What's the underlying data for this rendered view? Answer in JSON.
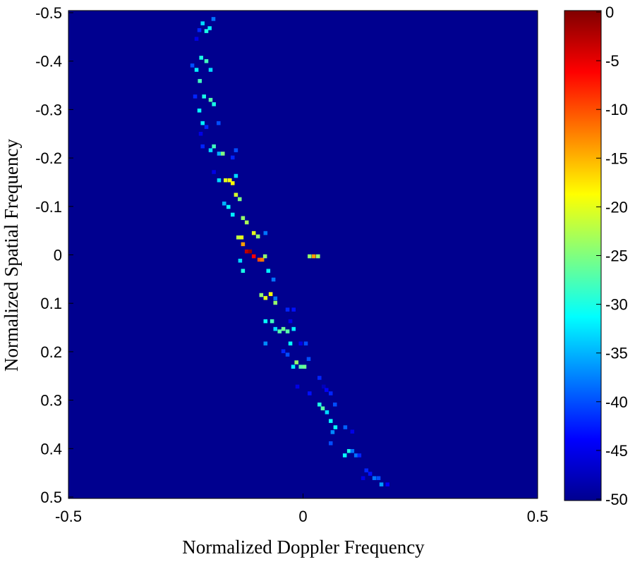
{
  "chart_data": {
    "type": "heatmap",
    "xlabel": "Normalized Doppler Frequency",
    "ylabel": "Normalized Spatial Frequency",
    "xlim": [
      -0.5,
      0.5
    ],
    "ylim": [
      -0.5,
      0.5
    ],
    "y_reversed": true,
    "xticks": [
      "-0.5",
      "0",
      "0.5"
    ],
    "yticks": [
      "-0.5",
      "-0.4",
      "-0.3",
      "-0.2",
      "-0.1",
      "0",
      "0.1",
      "0.2",
      "0.3",
      "0.4",
      "0.5"
    ],
    "colormap": "jet",
    "background_color": "#00008f",
    "colorbar": {
      "range": [
        -50,
        0
      ],
      "ticks": [
        "0",
        "-5",
        "-10",
        "-15",
        "-20",
        "-25",
        "-30",
        "-35",
        "-40",
        "-45",
        "-50"
      ]
    },
    "columns": [
      "doppler",
      "spatial",
      "dB"
    ],
    "points": [
      [
        -0.191,
        -0.487,
        -38
      ],
      [
        -0.214,
        -0.478,
        -33
      ],
      [
        -0.199,
        -0.468,
        -32
      ],
      [
        -0.206,
        -0.462,
        -30
      ],
      [
        -0.221,
        -0.464,
        -42
      ],
      [
        -0.227,
        -0.446,
        -45
      ],
      [
        -0.217,
        -0.407,
        -30
      ],
      [
        -0.206,
        -0.4,
        -28
      ],
      [
        -0.236,
        -0.391,
        -40
      ],
      [
        -0.227,
        -0.382,
        -32
      ],
      [
        -0.197,
        -0.382,
        -33
      ],
      [
        -0.22,
        -0.359,
        -28
      ],
      [
        -0.23,
        -0.327,
        -42
      ],
      [
        -0.211,
        -0.327,
        -30
      ],
      [
        -0.197,
        -0.32,
        -27
      ],
      [
        -0.19,
        -0.311,
        -30
      ],
      [
        -0.221,
        -0.298,
        -31
      ],
      [
        -0.214,
        -0.272,
        -32
      ],
      [
        -0.206,
        -0.264,
        -42
      ],
      [
        -0.18,
        -0.272,
        -40
      ],
      [
        -0.218,
        -0.25,
        -45
      ],
      [
        -0.214,
        -0.224,
        -42
      ],
      [
        -0.19,
        -0.224,
        -28
      ],
      [
        -0.197,
        -0.216,
        -33
      ],
      [
        -0.179,
        -0.209,
        -35
      ],
      [
        -0.171,
        -0.209,
        -25
      ],
      [
        -0.143,
        -0.216,
        -40
      ],
      [
        -0.15,
        -0.201,
        -42
      ],
      [
        -0.19,
        -0.171,
        -45
      ],
      [
        -0.179,
        -0.154,
        -33
      ],
      [
        -0.165,
        -0.154,
        -20
      ],
      [
        -0.156,
        -0.154,
        -19
      ],
      [
        -0.15,
        -0.148,
        -19
      ],
      [
        -0.143,
        -0.163,
        -33
      ],
      [
        -0.143,
        -0.124,
        -21
      ],
      [
        -0.135,
        -0.115,
        -25
      ],
      [
        -0.168,
        -0.106,
        -35
      ],
      [
        -0.159,
        -0.099,
        -31
      ],
      [
        -0.15,
        -0.083,
        -32
      ],
      [
        -0.128,
        -0.076,
        -24
      ],
      [
        -0.12,
        -0.067,
        -23
      ],
      [
        -0.105,
        -0.045,
        -20
      ],
      [
        -0.096,
        -0.038,
        -24
      ],
      [
        -0.08,
        -0.045,
        -38
      ],
      [
        -0.138,
        -0.036,
        -22
      ],
      [
        -0.131,
        -0.036,
        -20
      ],
      [
        -0.128,
        -0.022,
        -14
      ],
      [
        -0.12,
        -0.007,
        -3
      ],
      [
        -0.113,
        -0.007,
        -1
      ],
      [
        -0.105,
        0.003,
        -6
      ],
      [
        -0.093,
        0.01,
        -10
      ],
      [
        -0.087,
        0.01,
        -12
      ],
      [
        -0.081,
        0.003,
        -24
      ],
      [
        -0.134,
        0.012,
        -33
      ],
      [
        0.014,
        0.003,
        -24
      ],
      [
        0.023,
        0.003,
        -14
      ],
      [
        0.032,
        0.003,
        -24
      ],
      [
        -0.128,
        0.033,
        -30
      ],
      [
        -0.074,
        0.033,
        -32
      ],
      [
        -0.063,
        0.051,
        -38
      ],
      [
        -0.089,
        0.083,
        -24
      ],
      [
        -0.08,
        0.089,
        -20
      ],
      [
        -0.069,
        0.081,
        -19
      ],
      [
        -0.059,
        0.09,
        -38
      ],
      [
        -0.059,
        0.099,
        -24
      ],
      [
        -0.033,
        0.113,
        -42
      ],
      [
        -0.02,
        0.113,
        -43
      ],
      [
        -0.08,
        0.137,
        -31
      ],
      [
        -0.066,
        0.137,
        -28
      ],
      [
        -0.027,
        0.137,
        -45
      ],
      [
        -0.059,
        0.153,
        -33
      ],
      [
        -0.05,
        0.158,
        -27
      ],
      [
        -0.042,
        0.153,
        -26
      ],
      [
        -0.033,
        0.158,
        -27
      ],
      [
        -0.02,
        0.153,
        -32
      ],
      [
        -0.08,
        0.183,
        -37
      ],
      [
        -0.027,
        0.183,
        -31
      ],
      [
        0.006,
        0.183,
        -40
      ],
      [
        -0.005,
        0.183,
        -45
      ],
      [
        -0.042,
        0.199,
        -42
      ],
      [
        -0.033,
        0.206,
        -40
      ],
      [
        0.012,
        0.215,
        -40
      ],
      [
        -0.014,
        0.222,
        -24
      ],
      [
        -0.021,
        0.231,
        -32
      ],
      [
        -0.005,
        0.231,
        -27
      ],
      [
        0.003,
        0.231,
        -26
      ],
      [
        0.035,
        0.254,
        -42
      ],
      [
        -0.012,
        0.272,
        -45
      ],
      [
        0.044,
        0.272,
        -47
      ],
      [
        0.05,
        0.279,
        -44
      ],
      [
        0.014,
        0.286,
        -43
      ],
      [
        0.059,
        0.286,
        -42
      ],
      [
        0.035,
        0.309,
        -30
      ],
      [
        0.042,
        0.317,
        -27
      ],
      [
        0.051,
        0.325,
        -33
      ],
      [
        0.068,
        0.309,
        -40
      ],
      [
        0.059,
        0.343,
        -31
      ],
      [
        0.069,
        0.356,
        -31
      ],
      [
        0.09,
        0.356,
        -39
      ],
      [
        0.063,
        0.366,
        -37
      ],
      [
        0.105,
        0.365,
        -45
      ],
      [
        0.059,
        0.389,
        -40
      ],
      [
        0.098,
        0.405,
        -30
      ],
      [
        0.105,
        0.405,
        -38
      ],
      [
        0.089,
        0.414,
        -31
      ],
      [
        0.113,
        0.414,
        -38
      ],
      [
        0.12,
        0.414,
        -42
      ],
      [
        0.135,
        0.445,
        -42
      ],
      [
        0.143,
        0.452,
        -43
      ],
      [
        0.152,
        0.461,
        -38
      ],
      [
        0.161,
        0.461,
        -40
      ],
      [
        0.128,
        0.461,
        -45
      ],
      [
        0.167,
        0.474,
        -36
      ],
      [
        0.18,
        0.474,
        -44
      ]
    ]
  }
}
